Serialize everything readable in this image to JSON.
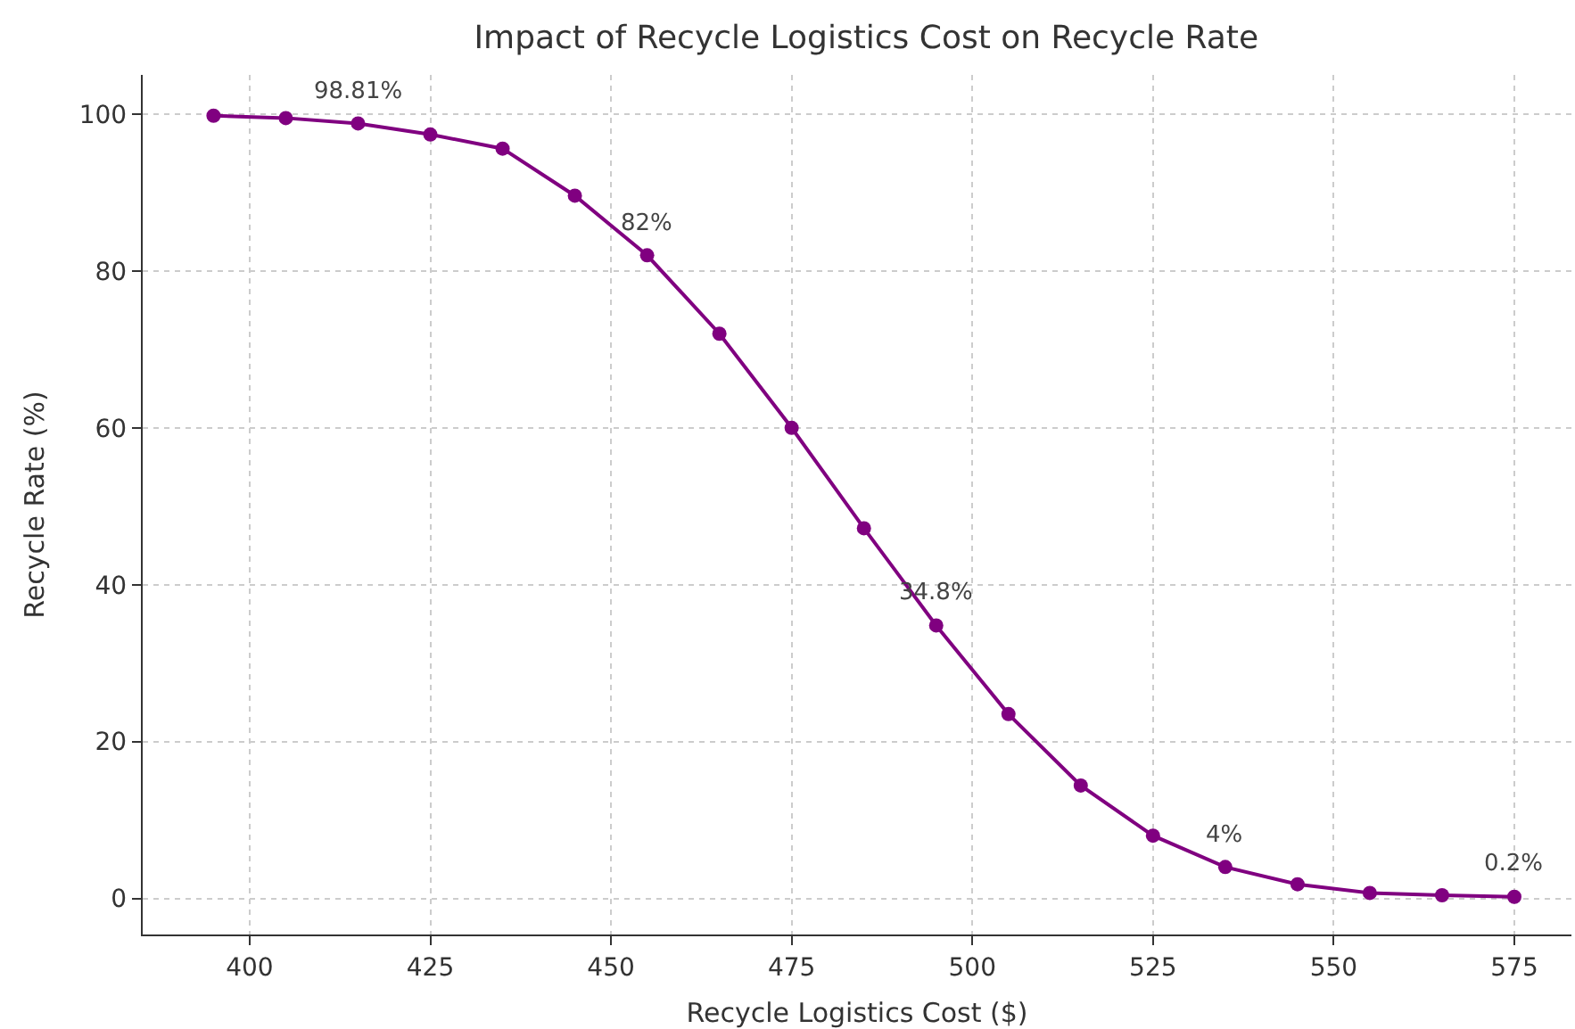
{
  "chart_data": {
    "type": "line",
    "title": "Impact of Recycle Logistics Cost on Recycle Rate",
    "xlabel": "Recycle Logistics Cost ($)",
    "ylabel": "Recycle Rate (%)",
    "x": [
      395,
      405,
      415,
      425,
      435,
      445,
      455,
      465,
      475,
      485,
      495,
      505,
      515,
      525,
      535,
      545,
      555,
      565,
      575
    ],
    "series": [
      {
        "color": "#800080",
        "values": [
          99.8,
          99.5,
          98.81,
          97.4,
          95.6,
          89.6,
          82,
          72,
          60,
          47.2,
          34.8,
          23.5,
          14.4,
          8,
          4,
          1.8,
          0.7,
          0.4,
          0.2
        ]
      }
    ],
    "annotations": [
      {
        "text": "98.81%",
        "x": 415,
        "y": 98.81
      },
      {
        "text": "82%",
        "x": 455,
        "y": 82
      },
      {
        "text": "34.8%",
        "x": 495,
        "y": 34.8
      },
      {
        "text": "4%",
        "x": 535,
        "y": 4
      },
      {
        "text": "0.2%",
        "x": 575,
        "y": 0.2
      }
    ],
    "xlim": [
      385.2,
      582.9
    ],
    "ylim": [
      -4.6,
      105
    ],
    "xticks": [
      400,
      425,
      450,
      475,
      500,
      525,
      550,
      575
    ],
    "yticks": [
      0,
      20,
      40,
      60,
      80,
      100
    ],
    "grid": true,
    "marker": "circle",
    "line_style": "solid"
  }
}
